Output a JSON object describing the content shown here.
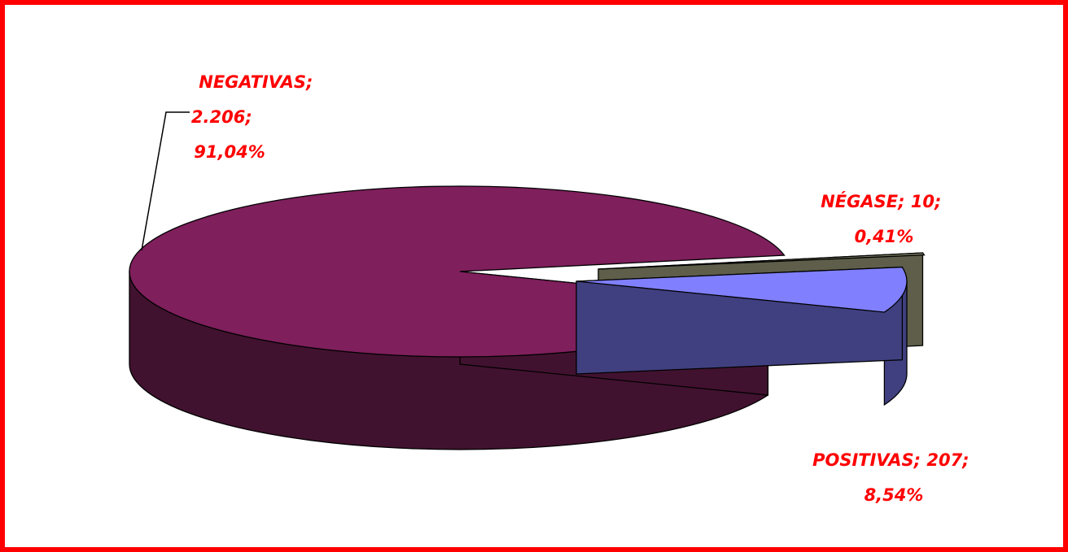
{
  "chart_data": {
    "type": "pie",
    "style": "3d-exploded",
    "slices": [
      {
        "name": "NEGATIVAS",
        "value": 2206,
        "value_label": "2.206",
        "percent": 91.04,
        "percent_label": "91,04%",
        "color": "#7f1f5c",
        "side_color": "#41122f"
      },
      {
        "name": "POSITIVAS",
        "value": 207,
        "value_label": "207",
        "percent": 8.54,
        "percent_label": "8,54%",
        "color": "#8080ff",
        "side_color": "#404080"
      },
      {
        "name": "NÉGASE",
        "value": 10,
        "value_label": "10",
        "percent": 0.41,
        "percent_label": "0,41%",
        "color": "#808066",
        "side_color": "#5e5e4b"
      }
    ],
    "labels": {
      "negativas": [
        "NEGATIVAS;",
        "2.206;",
        "91,04%"
      ],
      "negase": [
        "NÉGASE; 10;",
        "0,41%"
      ],
      "positivas": [
        "POSITIVAS; 207;",
        "8,54%"
      ]
    },
    "label_color": "#ff0000",
    "border_color": "#ff0000"
  }
}
